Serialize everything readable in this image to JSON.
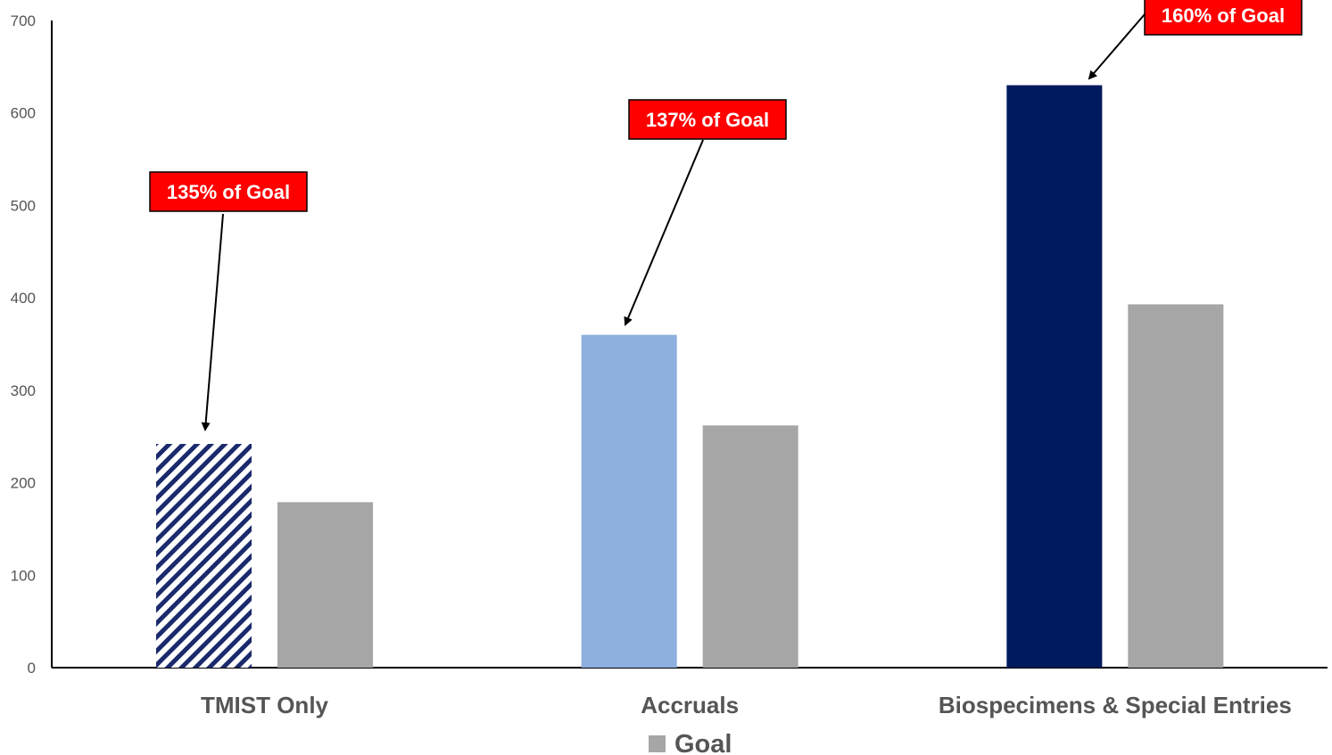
{
  "chart_data": {
    "type": "bar",
    "title": "",
    "xlabel": "",
    "ylabel": "",
    "ylim": [
      0,
      700
    ],
    "yticks": [
      0,
      100,
      200,
      300,
      400,
      500,
      600,
      700
    ],
    "categories": [
      "TMIST Only",
      "Accruals",
      "Biospecimens & Special Entries"
    ],
    "series": [
      {
        "values": [
          242,
          360,
          630
        ],
        "colors": [
          "#1a2a6c",
          "#8db0de",
          "#001a5e"
        ],
        "patterns": [
          "diagonal-hatch",
          "solid",
          "solid"
        ]
      },
      {
        "name": "Goal",
        "values": [
          179,
          262,
          393
        ],
        "color": "#a6a6a6"
      }
    ],
    "annotations": [
      {
        "text": "135% of Goal",
        "category": "TMIST Only",
        "series": 0,
        "color": "#ff0000"
      },
      {
        "text": "137% of Goal",
        "category": "Accruals",
        "series": 0,
        "color": "#ff0000"
      },
      {
        "text": "160% of Goal",
        "category": "Biospecimens & Special Entries",
        "series": 0,
        "color": "#ff0000"
      }
    ],
    "legend": {
      "position": "bottom",
      "entries": [
        "Goal"
      ]
    },
    "grid": false
  }
}
